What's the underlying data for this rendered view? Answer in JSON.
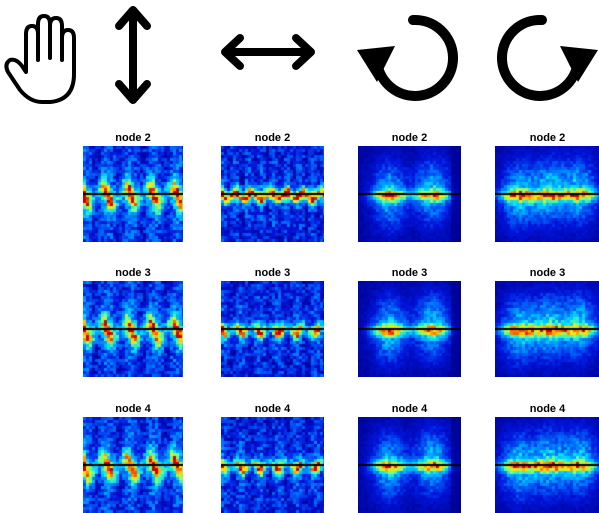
{
  "gesture_icons": [
    {
      "icon": "open-hand-icon"
    },
    {
      "icon": "vertical-double-arrow-icon"
    },
    {
      "icon": "horizontal-double-arrow-icon"
    },
    {
      "icon": "counterclockwise-rotation-icon"
    },
    {
      "icon": "clockwise-rotation-icon"
    }
  ],
  "rows": [
    {
      "label": "node 2"
    },
    {
      "label": "node 3"
    },
    {
      "label": "node 4"
    }
  ],
  "columns": [
    {
      "gesture": "vertical-double-arrow-icon"
    },
    {
      "gesture": "horizontal-double-arrow-icon"
    },
    {
      "gesture": "counterclockwise-rotation-icon"
    },
    {
      "gesture": "clockwise-rotation-icon"
    }
  ],
  "colormap": {
    "background": "#0a1aa8",
    "low": "#0a2ad8",
    "mid": "#1fd0f0",
    "high_yellow": "#f0f020",
    "peak": "#e02010",
    "centerline": "#000000"
  }
}
